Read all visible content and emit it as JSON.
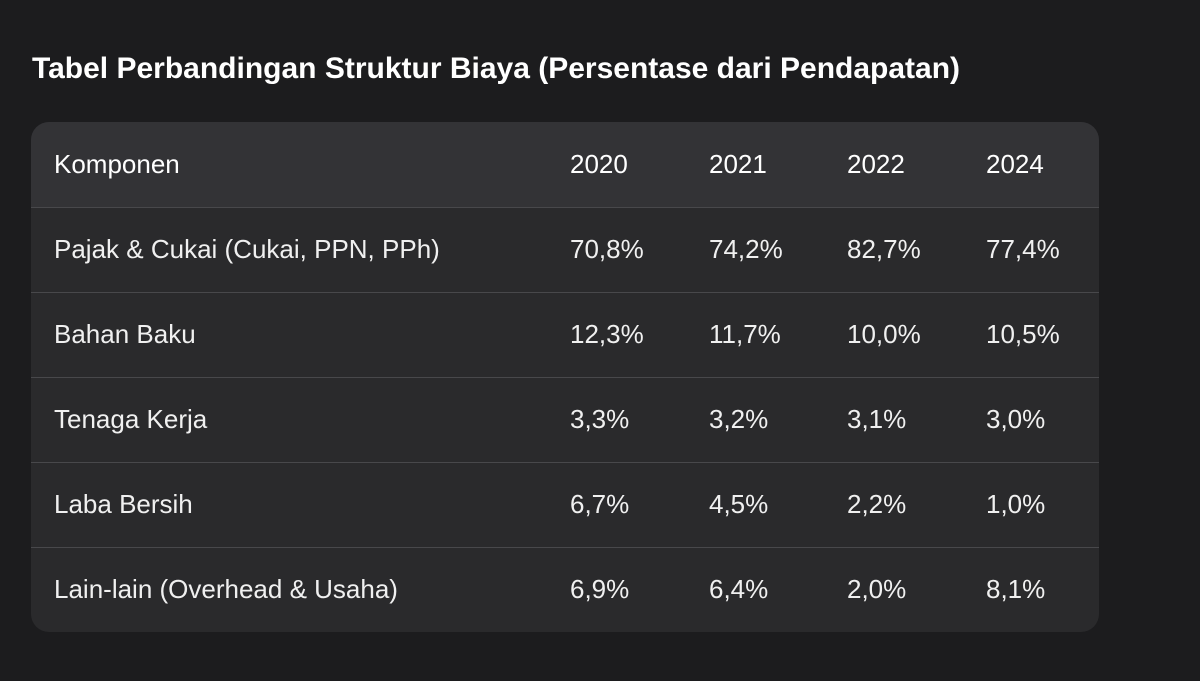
{
  "title": "Tabel Perbandingan Struktur Biaya (Persentase dari Pendapatan)",
  "table": {
    "headers": [
      "Komponen",
      "2020",
      "2021",
      "2022",
      "2024"
    ],
    "rows": [
      [
        "Pajak & Cukai (Cukai, PPN, PPh)",
        "70,8%",
        "74,2%",
        "82,7%",
        "77,4%"
      ],
      [
        "Bahan Baku",
        "12,3%",
        "11,7%",
        "10,0%",
        "10,5%"
      ],
      [
        "Tenaga Kerja",
        "3,3%",
        "3,2%",
        "3,1%",
        "3,0%"
      ],
      [
        "Laba Bersih",
        "6,7%",
        "4,5%",
        "2,2%",
        "1,0%"
      ],
      [
        "Lain-lain (Overhead & Usaha)",
        "6,9%",
        "6,4%",
        "2,0%",
        "8,1%"
      ]
    ]
  },
  "colors": {
    "background": "#1c1c1e",
    "card": "#2a2a2c",
    "header_row": "#333336",
    "divider": "#48484b",
    "text": "#f2f2f2"
  }
}
